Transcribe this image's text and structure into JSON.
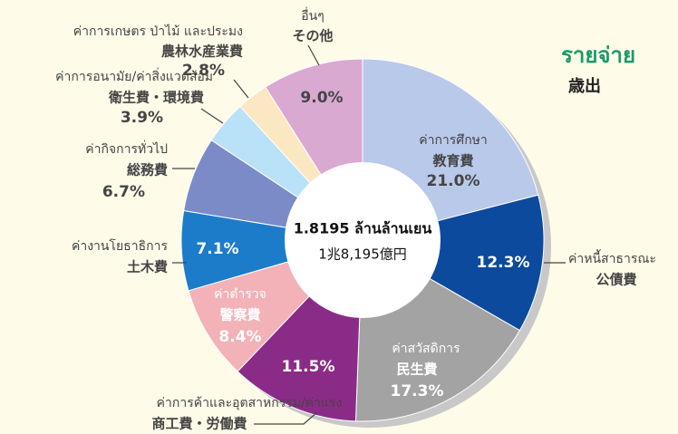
{
  "chart_data": {
    "type": "donut",
    "heading": "รายจ่าย",
    "heading_ja": "歳出",
    "title": "1.8195 ล้านล้านเยน",
    "subtitle": "1兆8,195億円",
    "categories": [
      "ค่าการศึกษา",
      "ค่าหนี้สาธารณะ",
      "ค่าสวัสดิการ",
      "ค่าการค้าและอุตสาหกรรม/ค่าแรง",
      "ค่าตำรวจ",
      "ค่างานโยธาธิการ",
      "ค่ากิจการทั่วไป",
      "ค่าการอนามัย/ค่าสิ่งแวดล้อม",
      "ค่าการเกษตร ป่าไม้ และประมง",
      "อื่นๆ"
    ],
    "categories_ja": [
      "教育費",
      "公債費",
      "民生費",
      "商工費・労働費",
      "警察費",
      "土木費",
      "総務費",
      "衛生費・環境費",
      "農林水産業費",
      "その他"
    ],
    "values": [
      21.0,
      12.3,
      17.3,
      11.5,
      8.4,
      7.1,
      6.7,
      3.9,
      2.8,
      9.0
    ],
    "value_labels": [
      "21.0%",
      "12.3%",
      "17.3%",
      "11.5%",
      "8.4%",
      "7.1%",
      "6.7%",
      "3.9%",
      "2.8%",
      "9.0%"
    ],
    "colors": [
      "#b9c9ea",
      "#0b4a9c",
      "#a3a3a3",
      "#8b2b88",
      "#f2b2b8",
      "#1c7cc9",
      "#7b8bc8",
      "#b9e1f7",
      "#fbe8c2",
      "#d9a9d1"
    ]
  }
}
